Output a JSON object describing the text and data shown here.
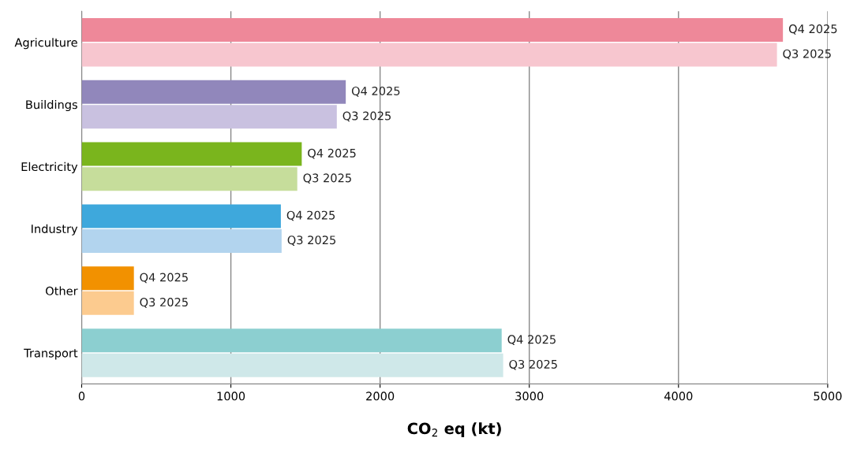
{
  "chart_data": {
    "type": "bar",
    "orientation": "horizontal",
    "xlabel": "CO$_{2}$ eq (kt)",
    "categories": [
      "Agriculture",
      "Buildings",
      "Electricity",
      "Industry",
      "Other",
      "Transport"
    ],
    "series": [
      {
        "name": "Q4 2025",
        "colors": [
          "#ee8899",
          "#9187bb",
          "#7ab51d",
          "#3ea8dc",
          "#f29100",
          "#8ccfd0"
        ],
        "values": [
          4700,
          1770,
          1475,
          1335,
          350,
          2815
        ]
      },
      {
        "name": "Q3 2025",
        "colors": [
          "#f7c6cf",
          "#c9c1e0",
          "#c6dd9b",
          "#b2d4ee",
          "#fccb8f",
          "#cfe8e9"
        ],
        "values": [
          4660,
          1710,
          1445,
          1340,
          350,
          2825
        ]
      }
    ],
    "xlim": [
      0,
      5000
    ],
    "xticks": [
      0,
      1000,
      2000,
      3000,
      4000,
      5000
    ],
    "grid": "x",
    "legend": false
  }
}
